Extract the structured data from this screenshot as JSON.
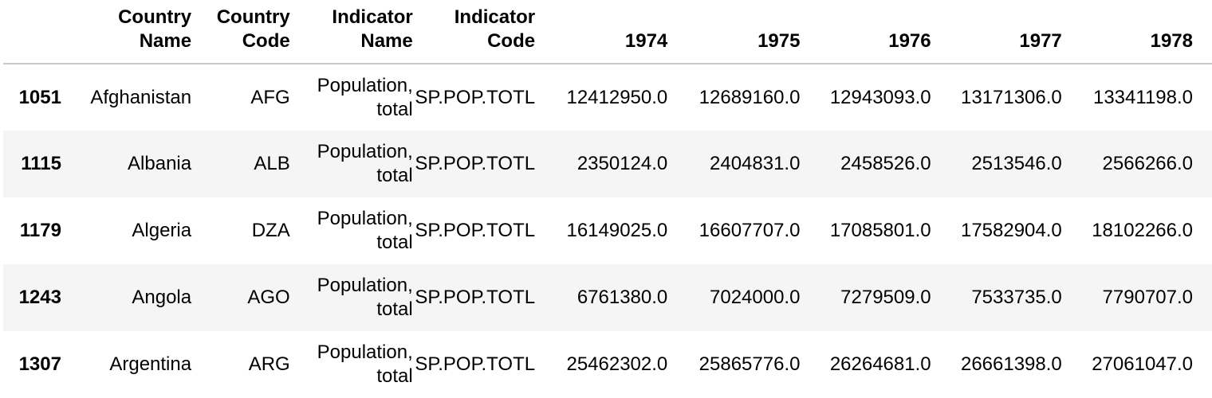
{
  "table": {
    "columns": [
      {
        "line1": "",
        "line2": ""
      },
      {
        "line1": "Country",
        "line2": "Name"
      },
      {
        "line1": "Country",
        "line2": "Code"
      },
      {
        "line1": "Indicator",
        "line2": "Name"
      },
      {
        "line1": "Indicator",
        "line2": "Code"
      },
      {
        "line1": "",
        "line2": "1974"
      },
      {
        "line1": "",
        "line2": "1975"
      },
      {
        "line1": "",
        "line2": "1976"
      },
      {
        "line1": "",
        "line2": "1977"
      },
      {
        "line1": "",
        "line2": "1978"
      }
    ],
    "rows": [
      {
        "index": "1051",
        "country_name": "Afghanistan",
        "country_code": "AFG",
        "indicator_name_l1": "Population,",
        "indicator_name_l2": "total",
        "indicator_code": "SP.POP.TOTL",
        "y1974": "12412950.0",
        "y1975": "12689160.0",
        "y1976": "12943093.0",
        "y1977": "13171306.0",
        "y1978": "13341198.0"
      },
      {
        "index": "1115",
        "country_name": "Albania",
        "country_code": "ALB",
        "indicator_name_l1": "Population,",
        "indicator_name_l2": "total",
        "indicator_code": "SP.POP.TOTL",
        "y1974": "2350124.0",
        "y1975": "2404831.0",
        "y1976": "2458526.0",
        "y1977": "2513546.0",
        "y1978": "2566266.0"
      },
      {
        "index": "1179",
        "country_name": "Algeria",
        "country_code": "DZA",
        "indicator_name_l1": "Population,",
        "indicator_name_l2": "total",
        "indicator_code": "SP.POP.TOTL",
        "y1974": "16149025.0",
        "y1975": "16607707.0",
        "y1976": "17085801.0",
        "y1977": "17582904.0",
        "y1978": "18102266.0"
      },
      {
        "index": "1243",
        "country_name": "Angola",
        "country_code": "AGO",
        "indicator_name_l1": "Population,",
        "indicator_name_l2": "total",
        "indicator_code": "SP.POP.TOTL",
        "y1974": "6761380.0",
        "y1975": "7024000.0",
        "y1976": "7279509.0",
        "y1977": "7533735.0",
        "y1978": "7790707.0"
      },
      {
        "index": "1307",
        "country_name": "Argentina",
        "country_code": "ARG",
        "indicator_name_l1": "Population,",
        "indicator_name_l2": "total",
        "indicator_code": "SP.POP.TOTL",
        "y1974": "25462302.0",
        "y1975": "25865776.0",
        "y1976": "26264681.0",
        "y1977": "26661398.0",
        "y1978": "27061047.0"
      }
    ]
  }
}
